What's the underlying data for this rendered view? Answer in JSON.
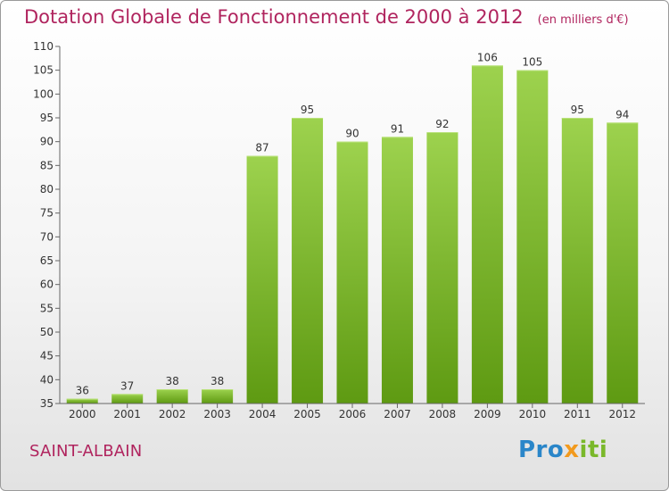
{
  "header": {
    "title": "Dotation Globale de Fonctionnement de 2000 à 2012",
    "unit": "(en milliers d'€)"
  },
  "footer": {
    "city": "SAINT-ALBAIN",
    "logo_text": "Proxiti"
  },
  "colors": {
    "bar_top": "#9dd24e",
    "bar_bottom": "#5e9a12",
    "title": "#b0245e"
  },
  "chart_data": {
    "type": "bar",
    "title": "Dotation Globale de Fonctionnement de 2000 à 2012",
    "subtitle": "(en milliers d'€)",
    "xlabel": "",
    "ylabel": "",
    "categories": [
      "2000",
      "2001",
      "2002",
      "2003",
      "2004",
      "2005",
      "2006",
      "2007",
      "2008",
      "2009",
      "2010",
      "2011",
      "2012"
    ],
    "values": [
      36,
      37,
      38,
      38,
      87,
      95,
      90,
      91,
      92,
      106,
      105,
      95,
      94
    ],
    "ylim": [
      35,
      110
    ],
    "yticks": [
      35,
      40,
      45,
      50,
      55,
      60,
      65,
      70,
      75,
      80,
      85,
      90,
      95,
      100,
      105,
      110
    ],
    "grid": false,
    "data_labels": true
  }
}
